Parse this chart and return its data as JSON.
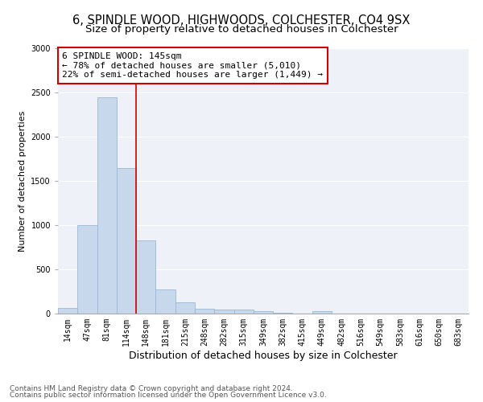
{
  "title": "6, SPINDLE WOOD, HIGHWOODS, COLCHESTER, CO4 9SX",
  "subtitle": "Size of property relative to detached houses in Colchester",
  "xlabel": "Distribution of detached houses by size in Colchester",
  "ylabel": "Number of detached properties",
  "categories": [
    "14sqm",
    "47sqm",
    "81sqm",
    "114sqm",
    "148sqm",
    "181sqm",
    "215sqm",
    "248sqm",
    "282sqm",
    "315sqm",
    "349sqm",
    "382sqm",
    "415sqm",
    "449sqm",
    "482sqm",
    "516sqm",
    "549sqm",
    "583sqm",
    "616sqm",
    "650sqm",
    "683sqm"
  ],
  "values": [
    60,
    1000,
    2450,
    1650,
    830,
    270,
    130,
    55,
    45,
    50,
    30,
    10,
    0,
    30,
    0,
    0,
    0,
    0,
    0,
    0,
    0
  ],
  "bar_color": "#c8d8ec",
  "bar_edgecolor": "#9ab8d4",
  "vline_x_index": 4,
  "vline_color": "#cc0000",
  "annotation_text": "6 SPINDLE WOOD: 145sqm\n← 78% of detached houses are smaller (5,010)\n22% of semi-detached houses are larger (1,449) →",
  "annotation_box_color": "#cc0000",
  "ylim": [
    0,
    3000
  ],
  "yticks": [
    0,
    500,
    1000,
    1500,
    2000,
    2500,
    3000
  ],
  "bg_color": "#eef2f8",
  "grid_color": "#ffffff",
  "footer_line1": "Contains HM Land Registry data © Crown copyright and database right 2024.",
  "footer_line2": "Contains public sector information licensed under the Open Government Licence v3.0.",
  "title_fontsize": 10.5,
  "subtitle_fontsize": 9.5,
  "xlabel_fontsize": 9,
  "ylabel_fontsize": 8,
  "tick_fontsize": 7,
  "annot_fontsize": 8,
  "footer_fontsize": 6.5
}
